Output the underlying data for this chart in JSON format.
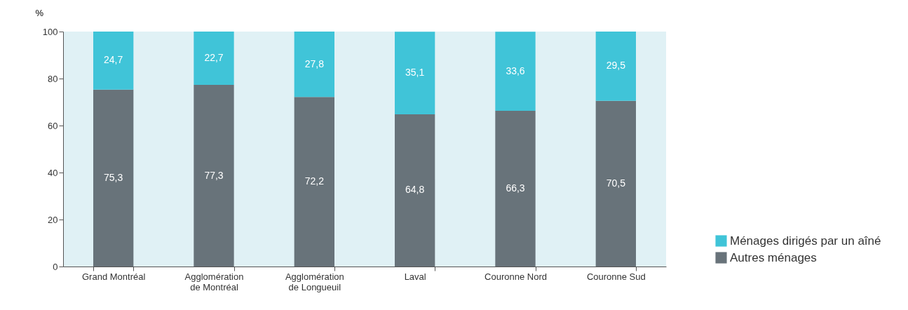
{
  "chart_data": {
    "type": "bar",
    "stacked": true,
    "ylabel": "%",
    "categories": [
      "Grand Montréal",
      "Agglomération de Montréal",
      "Agglomération de Longueuil",
      "Laval",
      "Couronne Nord",
      "Couronne Sud"
    ],
    "series": [
      {
        "name": "Autres ménages",
        "color": "#68737a",
        "values": [
          75.3,
          77.3,
          72.2,
          64.8,
          66.3,
          70.5
        ],
        "value_labels": [
          "75,3",
          "77,3",
          "72,2",
          "64,8",
          "66,3",
          "70,5"
        ]
      },
      {
        "name": "Ménages dirigés par un aîné",
        "color": "#40c4d8",
        "values": [
          24.7,
          22.7,
          27.8,
          35.1,
          33.6,
          29.5
        ],
        "value_labels": [
          "24,7",
          "22,7",
          "27,8",
          "35,1",
          "33,6",
          "29,5"
        ]
      }
    ],
    "ylim": [
      0,
      100
    ],
    "yticks": [
      0,
      20,
      40,
      60,
      80,
      100
    ],
    "grid": false,
    "legend": "bottom right"
  }
}
